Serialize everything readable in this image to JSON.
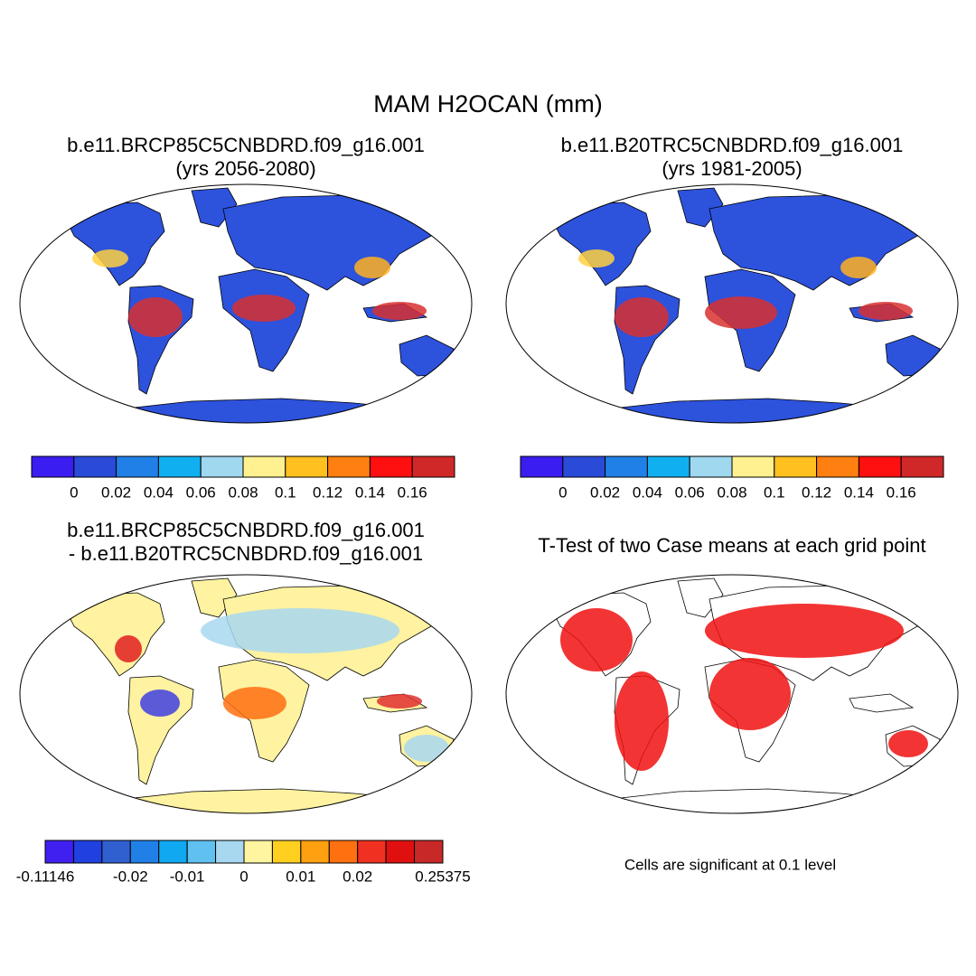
{
  "header": {
    "title": "MAM H2OCAN (mm)"
  },
  "panels": [
    {
      "title_lines": [
        "b.e11.BRCP85C5CNBDRD.f09_g16.001",
        "(yrs 2056-2080)"
      ],
      "colorbar": {
        "colors": [
          "#3a1df0",
          "#2a4ad8",
          "#2080e8",
          "#10b0f0",
          "#a0d8f0",
          "#fff090",
          "#ffc020",
          "#ff8010",
          "#ff1010",
          "#d02828"
        ],
        "labels": [
          "0",
          "0.02",
          "0.04",
          "0.06",
          "0.08",
          "0.1",
          "0.12",
          "0.14",
          "0.16"
        ]
      }
    },
    {
      "title_lines": [
        "b.e11.B20TRC5CNBDRD.f09_g16.001",
        "(yrs 1981-2005)"
      ],
      "colorbar": {
        "colors": [
          "#3a1df0",
          "#2a4ad8",
          "#2080e8",
          "#10b0f0",
          "#a0d8f0",
          "#fff090",
          "#ffc020",
          "#ff8010",
          "#ff1010",
          "#d02828"
        ],
        "labels": [
          "0",
          "0.02",
          "0.04",
          "0.06",
          "0.08",
          "0.1",
          "0.12",
          "0.14",
          "0.16"
        ]
      }
    },
    {
      "title_lines": [
        "b.e11.BRCP85C5CNBDRD.f09_g16.001",
        "- b.e11.B20TRC5CNBDRD.f09_g16.001"
      ],
      "colorbar": {
        "colors": [
          "#4020f0",
          "#2040e0",
          "#3060d0",
          "#2080e8",
          "#10a8f0",
          "#60c0f0",
          "#a8d8f0",
          "#fff4a0",
          "#ffd020",
          "#ffa010",
          "#ff7010",
          "#f03020",
          "#e01010",
          "#c82828"
        ],
        "labels": [
          "-0.11146",
          "-0.02",
          "-0.01",
          "0",
          "0.01",
          "0.02",
          "0.25375"
        ]
      }
    },
    {
      "title_lines": [
        "T-Test of two Case means at each grid point"
      ],
      "note": "Cells are significant at 0.1 level"
    }
  ]
}
